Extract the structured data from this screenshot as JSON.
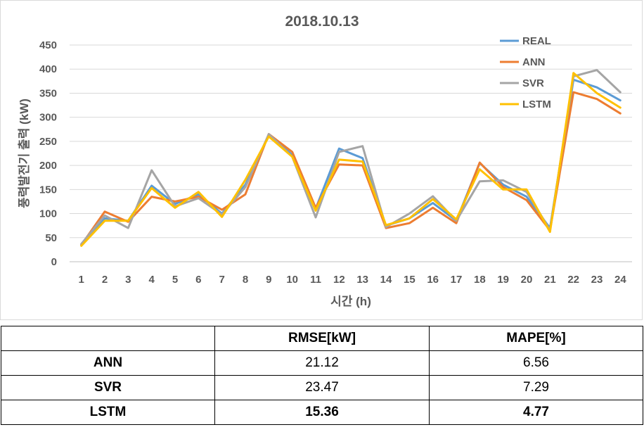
{
  "chart_data": {
    "type": "line",
    "title": "2018.10.13",
    "xlabel": "시간 (h)",
    "ylabel": "풍력발전기 출력 (kW)",
    "categories": [
      "1",
      "2",
      "3",
      "4",
      "5",
      "6",
      "7",
      "8",
      "9",
      "10",
      "11",
      "12",
      "13",
      "14",
      "15",
      "16",
      "17",
      "18",
      "19",
      "20",
      "21",
      "22",
      "23",
      "24"
    ],
    "ylim": [
      0,
      450
    ],
    "yticks": [
      0,
      50,
      100,
      150,
      200,
      250,
      300,
      350,
      400,
      450
    ],
    "grid": true,
    "legend_position": "top-right",
    "series": [
      {
        "name": "REAL",
        "color": "#5b9bd5",
        "values": [
          35,
          90,
          85,
          158,
          120,
          140,
          100,
          160,
          263,
          222,
          110,
          235,
          215,
          75,
          90,
          122,
          85,
          205,
          160,
          135,
          70,
          378,
          362,
          335
        ]
      },
      {
        "name": "ANN",
        "color": "#ed7d31",
        "values": [
          35,
          104,
          83,
          135,
          125,
          135,
          108,
          140,
          265,
          228,
          112,
          202,
          200,
          70,
          80,
          112,
          80,
          206,
          155,
          128,
          65,
          352,
          338,
          308
        ]
      },
      {
        "name": "SVR",
        "color": "#a5a5a5",
        "values": [
          37,
          96,
          70,
          190,
          115,
          132,
          98,
          155,
          265,
          218,
          92,
          228,
          240,
          72,
          100,
          136,
          85,
          167,
          169,
          145,
          66,
          385,
          398,
          352
        ]
      },
      {
        "name": "LSTM",
        "color": "#ffc000",
        "values": [
          33,
          85,
          85,
          153,
          112,
          145,
          93,
          170,
          260,
          218,
          106,
          212,
          208,
          76,
          90,
          130,
          88,
          192,
          150,
          150,
          62,
          392,
          350,
          320
        ]
      }
    ]
  },
  "table": {
    "headers": [
      "",
      "RMSE[kW]",
      "MAPE[%]"
    ],
    "rows": [
      {
        "name": "ANN",
        "rmse": "21.12",
        "mape": "6.56"
      },
      {
        "name": "SVR",
        "rmse": "23.47",
        "mape": "7.29"
      },
      {
        "name": "LSTM",
        "rmse": "15.36",
        "mape": "4.77"
      }
    ]
  }
}
